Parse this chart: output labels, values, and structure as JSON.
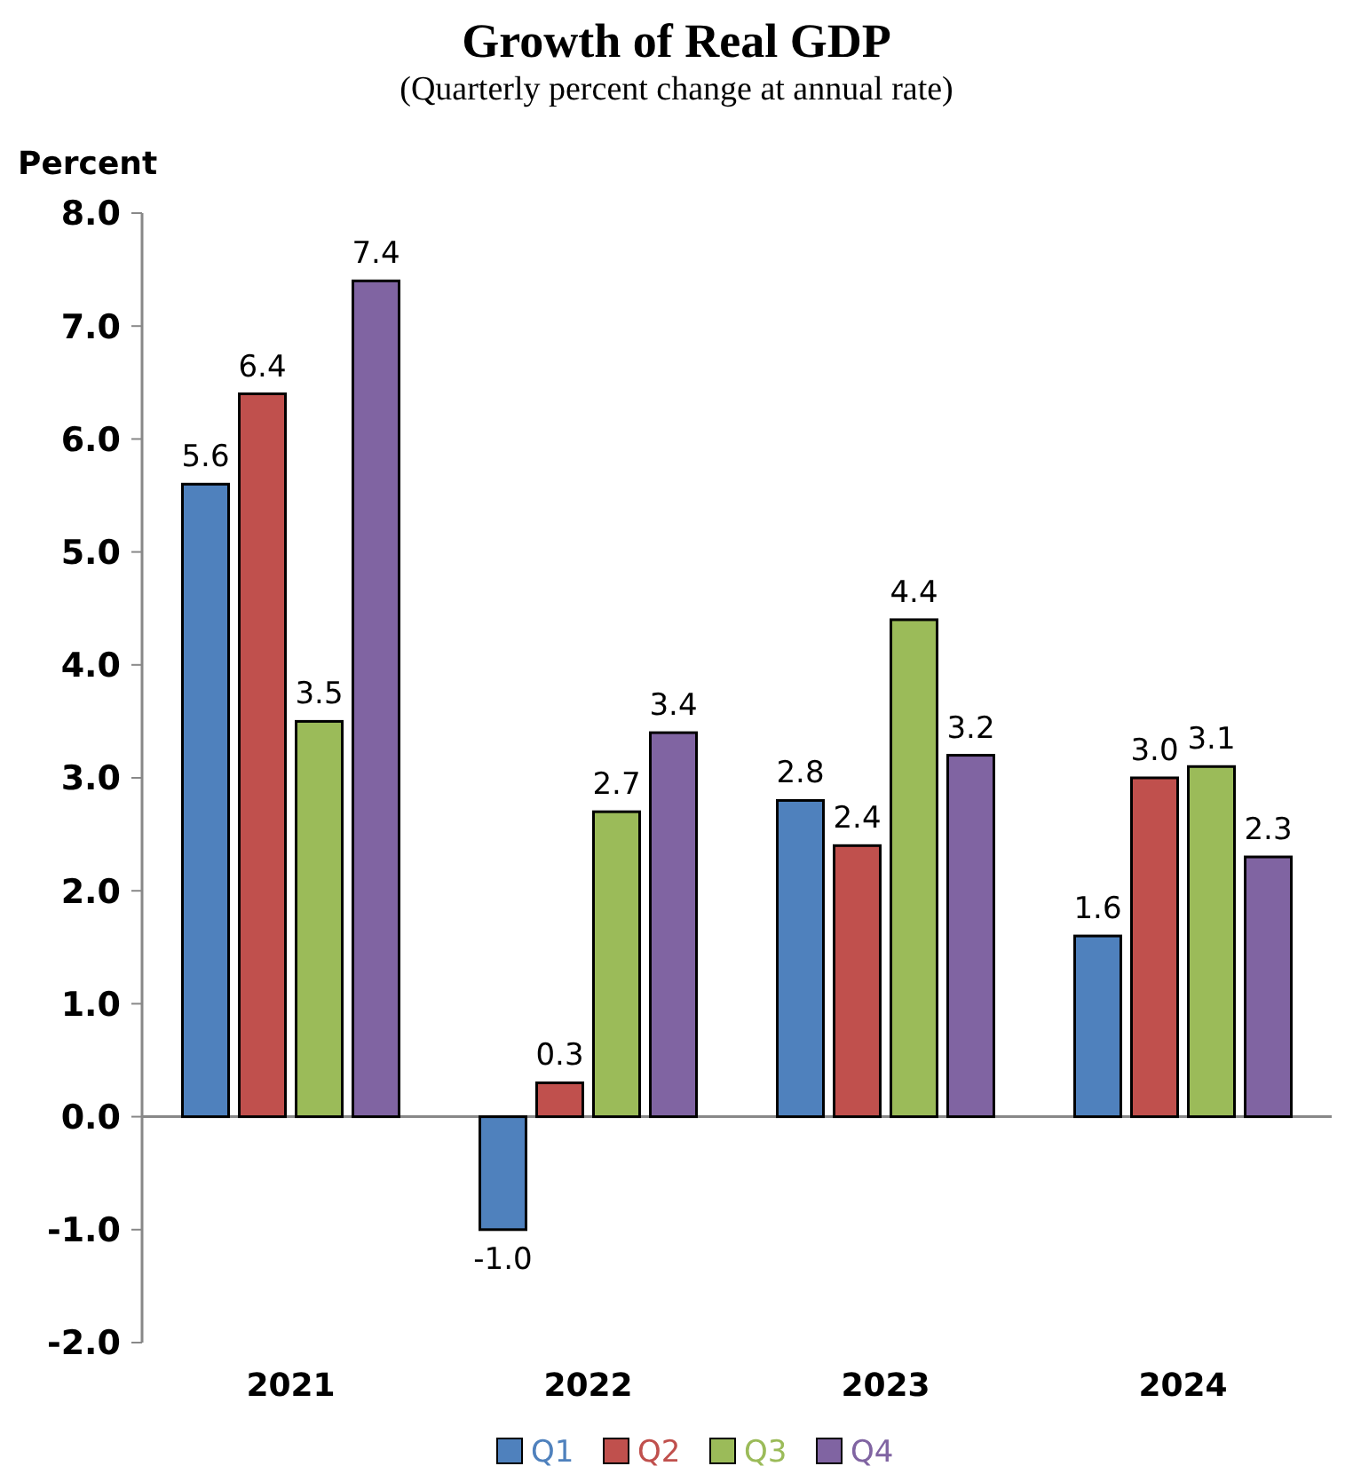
{
  "chart_data": {
    "type": "bar",
    "title": "Growth of Real GDP",
    "subtitle": "(Quarterly percent change at annual rate)",
    "ylabel": "Percent",
    "categories": [
      "2021",
      "2022",
      "2023",
      "2024"
    ],
    "series": [
      {
        "name": "Q1",
        "color": "#4f81bd",
        "values": [
          5.6,
          -1.0,
          2.8,
          1.6
        ],
        "value_labels": [
          "5.6",
          "-1.0",
          "2.8",
          "1.6"
        ]
      },
      {
        "name": "Q2",
        "color": "#c0504d",
        "values": [
          6.4,
          0.3,
          2.4,
          3.0
        ],
        "value_labels": [
          "6.4",
          "0.3",
          "2.4",
          "3.0"
        ]
      },
      {
        "name": "Q3",
        "color": "#9bbb59",
        "values": [
          3.5,
          2.7,
          4.4,
          3.1
        ],
        "value_labels": [
          "3.5",
          "2.7",
          "4.4",
          "3.1"
        ]
      },
      {
        "name": "Q4",
        "color": "#8064a2",
        "values": [
          7.4,
          3.4,
          3.2,
          2.3
        ],
        "value_labels": [
          "7.4",
          "3.4",
          "3.2",
          "2.3"
        ]
      }
    ],
    "ylim": [
      -2,
      8
    ],
    "yticks": [
      {
        "value": -2,
        "label": "-2.0"
      },
      {
        "value": -1,
        "label": "-1.0"
      },
      {
        "value": 0,
        "label": "0.0"
      },
      {
        "value": 1,
        "label": "1.0"
      },
      {
        "value": 2,
        "label": "2.0"
      },
      {
        "value": 3,
        "label": "3.0"
      },
      {
        "value": 4,
        "label": "4.0"
      },
      {
        "value": 5,
        "label": "5.0"
      },
      {
        "value": 6,
        "label": "6.0"
      },
      {
        "value": 7,
        "label": "7.0"
      },
      {
        "value": 8,
        "label": "8.0"
      }
    ],
    "legend": "bottom"
  }
}
